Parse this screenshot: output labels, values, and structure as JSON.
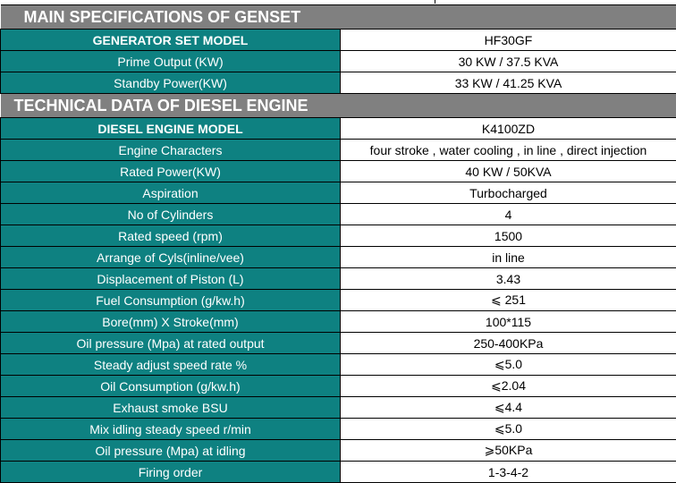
{
  "sections": [
    {
      "title": "MAIN SPECIFICATIONS OF GENSET",
      "rows": [
        {
          "label": "GENERATOR SET MODEL",
          "value": "HF30GF",
          "bold": true
        },
        {
          "label": "Prime Output (KW)",
          "value": "30 KW / 37.5 KVA"
        },
        {
          "label": "Standby Power(KW)",
          "value": "33 KW / 41.25 KVA"
        }
      ]
    },
    {
      "title": "TECHNICAL DATA OF DIESEL ENGINE",
      "rows": [
        {
          "label": "DIESEL ENGINE MODEL",
          "value": "K4100ZD",
          "bold": true
        },
        {
          "label": "Engine Characters",
          "value": "four stroke , water cooling , in line , direct injection"
        },
        {
          "label": "Rated Power(KW)",
          "value": "40 KW / 50KVA"
        },
        {
          "label": "Aspiration",
          "value": "Turbocharged"
        },
        {
          "label": "No of Cylinders",
          "value": "4"
        },
        {
          "label": "Rated speed (rpm)",
          "value": "1500"
        },
        {
          "label": "Arrange of Cyls(inline/vee)",
          "value": "in line"
        },
        {
          "label": "Displacement of Piston (L)",
          "value": "3.43"
        },
        {
          "label": "Fuel Consumption (g/kw.h)",
          "value": "⩽ 251"
        },
        {
          "label": "Bore(mm) X Stroke(mm)",
          "value": "100*115"
        },
        {
          "label": "Oil pressure (Mpa) at rated output",
          "value": "250-400KPa"
        },
        {
          "label": "Steady adjust speed rate %",
          "value": "⩽5.0"
        },
        {
          "label": "Oil Consumption (g/kw.h)",
          "value": "⩽2.04"
        },
        {
          "label": "Exhaust smoke BSU",
          "value": "⩽4.4"
        },
        {
          "label": "Mix idling steady speed r/min",
          "value": "⩽5.0"
        },
        {
          "label": "Oil pressure (Mpa) at idling",
          "value": "⩾50KPa"
        },
        {
          "label": "Firing order",
          "value": "1-3-4-2"
        }
      ]
    }
  ]
}
